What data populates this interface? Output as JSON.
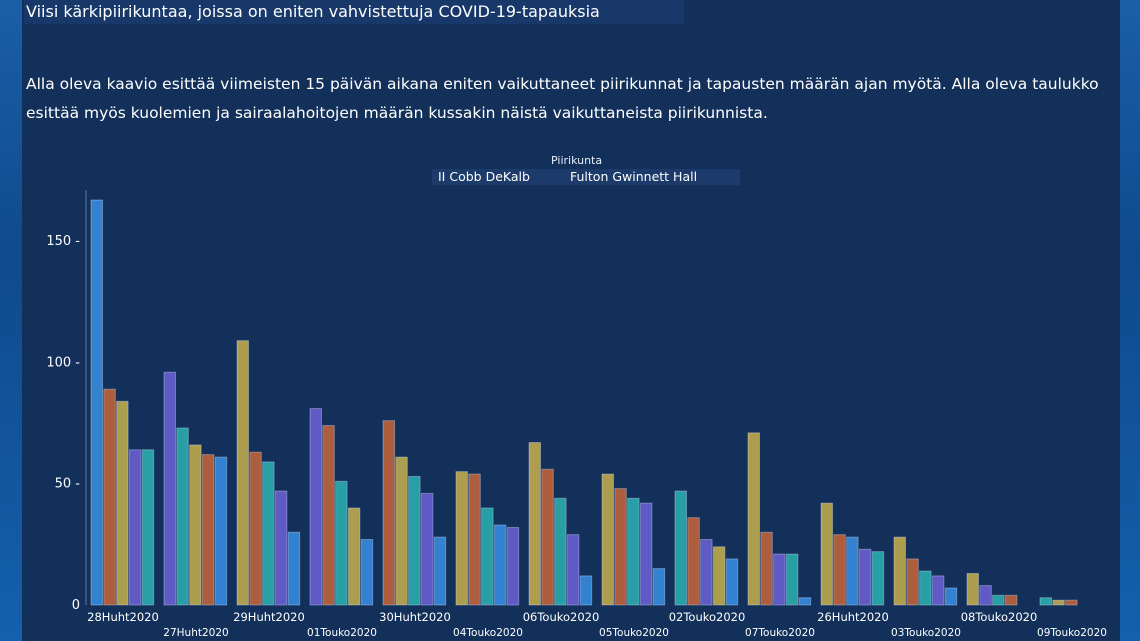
{
  "page": {
    "title": "Viisi kärkipiirikuntaa, joissa on eniten vahvistettuja COVID-19-tapauksia",
    "description_line1": "Alla oleva kaavio esittää viimeisten 15 päivän aikana eniten vaikuttaneet piirikunnat ja tapausten määrän ajan myötä. Alla oleva taulukko",
    "description_line2": "esittää myös kuolemien ja sairaalahoitojen määrän kussakin näistä vaikuttaneista piirikunnista."
  },
  "legend": {
    "title": "Piirikunta",
    "group1": "II Cobb DeKalb",
    "group2": "Fulton Gwinnett Hall"
  },
  "colors": {
    "blue": "#3a8fe6",
    "orange": "#c8663a",
    "gold": "#c9b04e",
    "purple": "#6e62d8",
    "teal": "#2bb3b3",
    "grid": "#5a7aa8",
    "text": "#ffffff"
  },
  "chart_data": {
    "type": "bar",
    "ylim": [
      0,
      170
    ],
    "yticks": [
      "0",
      "50",
      "100",
      "150"
    ],
    "title": "",
    "xlabel": "",
    "ylabel": "",
    "groups": [
      {
        "label": "28Huht2020",
        "values": [
          167,
          89,
          84,
          64,
          64
        ],
        "colors": [
          "blue",
          "orange",
          "gold",
          "purple",
          "teal"
        ]
      },
      {
        "label": "27Huht2020",
        "values": [
          96,
          73,
          66,
          62,
          61
        ],
        "colors": [
          "purple",
          "teal",
          "gold",
          "orange",
          "blue"
        ]
      },
      {
        "label": "29Huht2020",
        "values": [
          109,
          63,
          59,
          47,
          30
        ],
        "colors": [
          "gold",
          "orange",
          "teal",
          "purple",
          "blue"
        ]
      },
      {
        "label": "01Touko2020",
        "values": [
          81,
          74,
          51,
          40,
          27
        ],
        "colors": [
          "purple",
          "orange",
          "teal",
          "gold",
          "blue"
        ]
      },
      {
        "label": "30Huht2020",
        "values": [
          76,
          61,
          53,
          46,
          28
        ],
        "colors": [
          "orange",
          "gold",
          "teal",
          "purple",
          "blue"
        ]
      },
      {
        "label": "04Touko2020",
        "values": [
          55,
          54,
          40,
          33,
          32
        ],
        "colors": [
          "gold",
          "orange",
          "teal",
          "blue",
          "purple"
        ]
      },
      {
        "label": "06Touko2020",
        "values": [
          67,
          56,
          44,
          29,
          12
        ],
        "colors": [
          "gold",
          "orange",
          "teal",
          "purple",
          "blue"
        ]
      },
      {
        "label": "05Touko2020",
        "values": [
          54,
          48,
          44,
          42,
          15
        ],
        "colors": [
          "gold",
          "orange",
          "teal",
          "purple",
          "blue"
        ]
      },
      {
        "label": "02Touko2020",
        "values": [
          47,
          36,
          27,
          24,
          19
        ],
        "colors": [
          "teal",
          "orange",
          "purple",
          "gold",
          "blue"
        ]
      },
      {
        "label": "07Touko2020",
        "values": [
          71,
          30,
          21,
          21,
          3
        ],
        "colors": [
          "gold",
          "orange",
          "purple",
          "teal",
          "blue"
        ]
      },
      {
        "label": "26Huht2020",
        "values": [
          42,
          29,
          28,
          23,
          22
        ],
        "colors": [
          "gold",
          "orange",
          "blue",
          "purple",
          "teal"
        ]
      },
      {
        "label": "03Touko2020",
        "values": [
          28,
          19,
          14,
          12,
          7
        ],
        "colors": [
          "gold",
          "orange",
          "teal",
          "purple",
          "blue"
        ]
      },
      {
        "label": "08Touko2020",
        "values": [
          13,
          8,
          4,
          4,
          0
        ],
        "colors": [
          "gold",
          "purple",
          "teal",
          "orange",
          "blue"
        ]
      },
      {
        "label": "09Touko2020",
        "values": [
          3,
          2,
          2,
          0,
          0
        ],
        "colors": [
          "teal",
          "gold",
          "orange",
          "purple",
          "blue"
        ]
      }
    ]
  }
}
